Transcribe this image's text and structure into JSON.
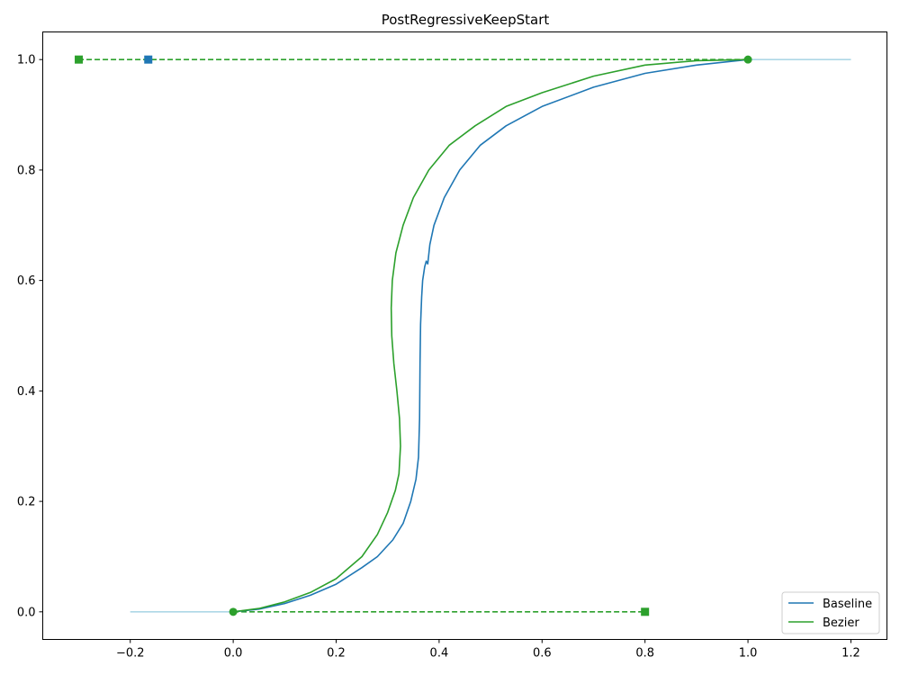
{
  "chart_data": {
    "type": "line",
    "title": "PostRegressiveKeepStart",
    "xlabel": "",
    "ylabel": "",
    "xlim": [
      -0.37,
      1.27
    ],
    "ylim": [
      -0.05,
      1.05
    ],
    "xticks": [
      -0.2,
      0.0,
      0.2,
      0.4,
      0.6,
      0.8,
      1.0,
      1.2
    ],
    "xtick_labels": [
      "−0.2",
      "0.0",
      "0.2",
      "0.4",
      "0.6",
      "0.8",
      "1.0",
      "1.2"
    ],
    "yticks": [
      0.0,
      0.2,
      0.4,
      0.6,
      0.8,
      1.0
    ],
    "ytick_labels": [
      "0.0",
      "0.2",
      "0.4",
      "0.6",
      "0.8",
      "1.0"
    ],
    "grid": false,
    "legend": {
      "placement": "lower-right",
      "entries": [
        "Baseline",
        "Bezier"
      ]
    },
    "colors": {
      "baseline": "#1f77b4",
      "bezier": "#2ca02c",
      "extension": "#add8e6"
    },
    "extensions": [
      {
        "x": [
          -0.2,
          0.0
        ],
        "y": [
          0.0,
          0.0
        ]
      },
      {
        "x": [
          1.0,
          1.2
        ],
        "y": [
          1.0,
          1.0
        ]
      }
    ],
    "series": [
      {
        "name": "Baseline",
        "x": [
          0.0,
          0.05,
          0.1,
          0.15,
          0.2,
          0.25,
          0.28,
          0.31,
          0.33,
          0.345,
          0.355,
          0.36,
          0.362,
          0.363,
          0.364,
          0.366,
          0.368,
          0.372,
          0.375,
          0.378,
          0.382,
          0.39,
          0.41,
          0.44,
          0.48,
          0.53,
          0.6,
          0.7,
          0.8,
          0.9,
          1.0
        ],
        "y": [
          0.0,
          0.005,
          0.015,
          0.03,
          0.05,
          0.08,
          0.1,
          0.13,
          0.16,
          0.2,
          0.24,
          0.28,
          0.35,
          0.45,
          0.52,
          0.57,
          0.6,
          0.625,
          0.635,
          0.63,
          0.665,
          0.7,
          0.75,
          0.8,
          0.845,
          0.88,
          0.915,
          0.95,
          0.975,
          0.99,
          1.0
        ]
      },
      {
        "name": "Bezier",
        "x": [
          0.0,
          0.05,
          0.1,
          0.15,
          0.2,
          0.25,
          0.28,
          0.3,
          0.315,
          0.322,
          0.325,
          0.323,
          0.318,
          0.312,
          0.308,
          0.307,
          0.309,
          0.316,
          0.33,
          0.35,
          0.38,
          0.42,
          0.47,
          0.53,
          0.6,
          0.7,
          0.8,
          0.9,
          1.0
        ],
        "y": [
          0.0,
          0.006,
          0.018,
          0.035,
          0.06,
          0.1,
          0.14,
          0.18,
          0.22,
          0.25,
          0.3,
          0.35,
          0.4,
          0.45,
          0.5,
          0.55,
          0.6,
          0.65,
          0.7,
          0.75,
          0.8,
          0.845,
          0.88,
          0.915,
          0.94,
          0.97,
          0.99,
          0.998,
          1.0
        ]
      }
    ],
    "control_handles": [
      {
        "color": "#2ca02c",
        "anchor": [
          0.0,
          0.0
        ],
        "handle": [
          0.8,
          0.0
        ]
      },
      {
        "color": "#2ca02c",
        "anchor": [
          1.0,
          1.0
        ],
        "handle": [
          -0.3,
          1.0
        ]
      }
    ],
    "baseline_handle": {
      "color": "#1f77b4",
      "point": [
        -0.165,
        1.0
      ]
    }
  }
}
